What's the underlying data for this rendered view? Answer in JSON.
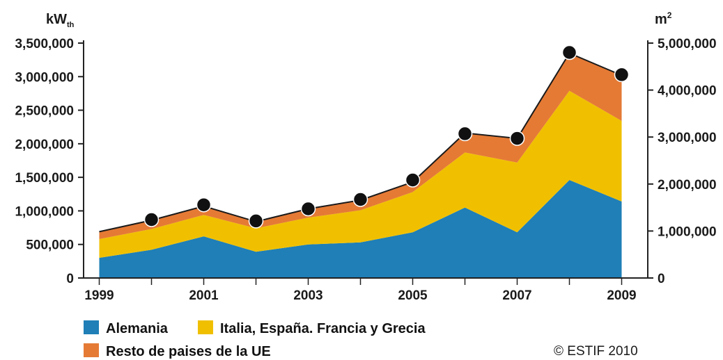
{
  "chart_data": {
    "type": "area",
    "stacked": true,
    "x": [
      1999,
      2000,
      2001,
      2002,
      2003,
      2004,
      2005,
      2006,
      2007,
      2008,
      2009
    ],
    "x_tick_labels": [
      "1999",
      "2001",
      "2003",
      "2005",
      "2007",
      "2009"
    ],
    "x_tick_values": [
      1999,
      2001,
      2003,
      2005,
      2007,
      2009
    ],
    "y_left": {
      "unit_main": "kW",
      "unit_sub": "th",
      "ylim": [
        0,
        3500000
      ],
      "ticks": [
        0,
        500000,
        1000000,
        1500000,
        2000000,
        2500000,
        3000000,
        3500000
      ],
      "tick_labels": [
        "0",
        "500,000",
        "1,000,000",
        "1,500,000",
        "2,000,000",
        "2,500,000",
        "3,000,000",
        "3,500,000"
      ]
    },
    "y_right": {
      "unit_main": "m",
      "unit_sup": "2",
      "ylim": [
        0,
        5000000
      ],
      "ticks": [
        0,
        1000000,
        2000000,
        3000000,
        4000000,
        5000000
      ],
      "tick_labels": [
        "0",
        "1,000,000",
        "2,000,000",
        "3,000,000",
        "4,000,000",
        "5,000,000"
      ]
    },
    "series": [
      {
        "name": "Alemania",
        "color": "#1f7fb6",
        "values": [
          300000,
          420000,
          620000,
          390000,
          500000,
          530000,
          680000,
          1050000,
          680000,
          1460000,
          1140000
        ]
      },
      {
        "name": "Italia, España. Francia y Grecia",
        "color": "#f0c000",
        "values": [
          280000,
          310000,
          320000,
          350000,
          400000,
          480000,
          600000,
          820000,
          1040000,
          1330000,
          1200000
        ]
      },
      {
        "name": "Resto de paises de la UE",
        "color": "#e57a35",
        "values": [
          110000,
          130000,
          130000,
          100000,
          130000,
          150000,
          150000,
          290000,
          360000,
          560000,
          680000
        ]
      }
    ],
    "total_markers": {
      "x": [
        2000,
        2001,
        2002,
        2003,
        2004,
        2005,
        2006,
        2007,
        2008,
        2009
      ],
      "values": [
        870000,
        1090000,
        850000,
        1030000,
        1170000,
        1460000,
        2150000,
        2080000,
        3360000,
        3030000
      ]
    },
    "legend_placement": "bottom-left",
    "grid": false
  },
  "credit": "© ESTIF 2010"
}
